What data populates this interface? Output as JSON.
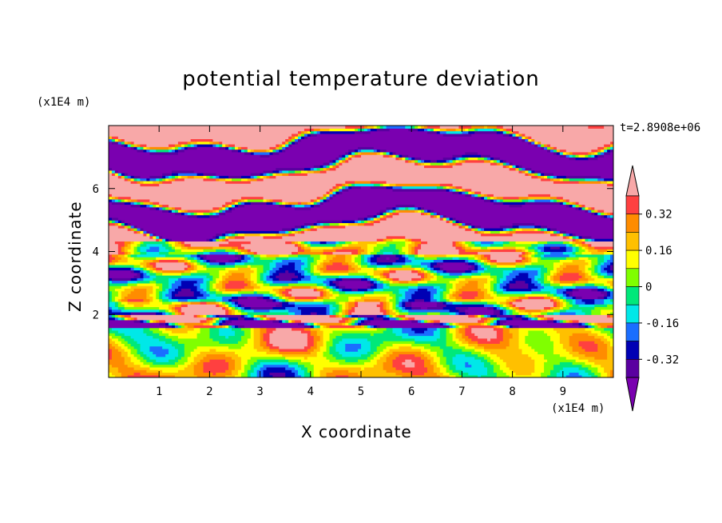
{
  "chart_data": {
    "type": "heatmap",
    "title": "potential temperature deviation",
    "xlabel": "X coordinate",
    "ylabel": "Z coordinate",
    "x_unit": "(x1E4 m)",
    "y_unit": "(x1E4 m)",
    "time_label": "t=2.8908e+06",
    "xlim": [
      0,
      10
    ],
    "ylim": [
      0,
      8
    ],
    "x_ticks": [
      "1",
      "2",
      "3",
      "4",
      "5",
      "6",
      "7",
      "8",
      "9"
    ],
    "y_ticks": [
      "2",
      "4",
      "6"
    ],
    "colorbar": {
      "labels": [
        "0.32",
        "0.16",
        "0",
        "-0.16",
        "-0.32"
      ],
      "levels": [
        0.4,
        0.32,
        0.24,
        0.16,
        0.08,
        0,
        -0.08,
        -0.16,
        -0.24,
        -0.32,
        -0.4
      ],
      "colors": [
        "#ff4040",
        "#ff8c00",
        "#ffc000",
        "#ffff00",
        "#80ff00",
        "#00e87a",
        "#00e8e8",
        "#1a6eff",
        "#0000b4",
        "#5a00a0"
      ],
      "over_color": "#f8a8a8",
      "under_color": "#7a00b0"
    },
    "layers": [
      {
        "z_range": [
          6.3,
          8.0
        ],
        "pattern": "alternating bands",
        "dominant": "#7a00b0",
        "secondary": "#f8a8a8"
      },
      {
        "z_range": [
          4.2,
          6.3
        ],
        "pattern": "alternating bands with warm patches",
        "dominant": "#f8a8a8",
        "secondary": "#7a00b0"
      },
      {
        "z_range": [
          2.0,
          4.2
        ],
        "pattern": "turbulent mixed band",
        "dominant": "#ffff00",
        "secondary": "#0000b4"
      },
      {
        "z_range": [
          1.6,
          2.0
        ],
        "pattern": "stable band",
        "dominant": "#7a00b0",
        "secondary": "#f8a8a8"
      },
      {
        "z_range": [
          0.0,
          1.6
        ],
        "pattern": "convective eddies",
        "dominant": "#80ff00",
        "secondary": "#00e8e8"
      }
    ]
  }
}
